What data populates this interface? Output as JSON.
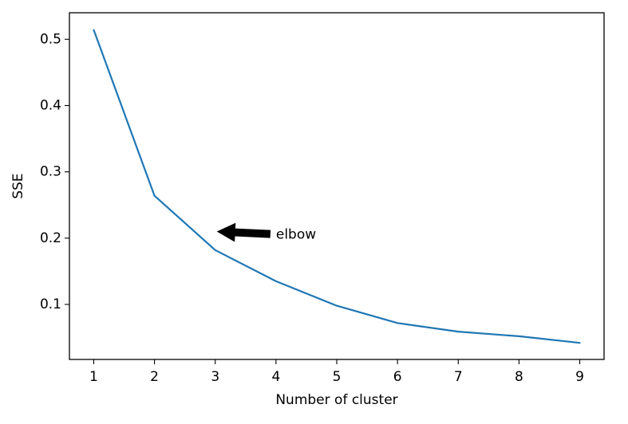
{
  "chart_data": {
    "type": "line",
    "title": "",
    "xlabel": "Number of cluster",
    "ylabel": "SSE",
    "xlim": [
      0.6,
      9.4
    ],
    "ylim": [
      0.017,
      0.54
    ],
    "xticks": [
      1,
      2,
      3,
      4,
      5,
      6,
      7,
      8,
      9
    ],
    "yticks": [
      0.1,
      0.2,
      0.3,
      0.4,
      0.5
    ],
    "grid": false,
    "series": [
      {
        "x": [
          1,
          2,
          3,
          4,
          5,
          6,
          7,
          8,
          9
        ],
        "values": [
          0.514,
          0.264,
          0.182,
          0.135,
          0.098,
          0.072,
          0.059,
          0.052,
          0.042
        ],
        "color": "#1f77b4"
      }
    ],
    "annotations": [
      {
        "text": "elbow",
        "xy": [
          3,
          0.21
        ],
        "xytext": [
          4,
          0.205
        ]
      }
    ]
  }
}
